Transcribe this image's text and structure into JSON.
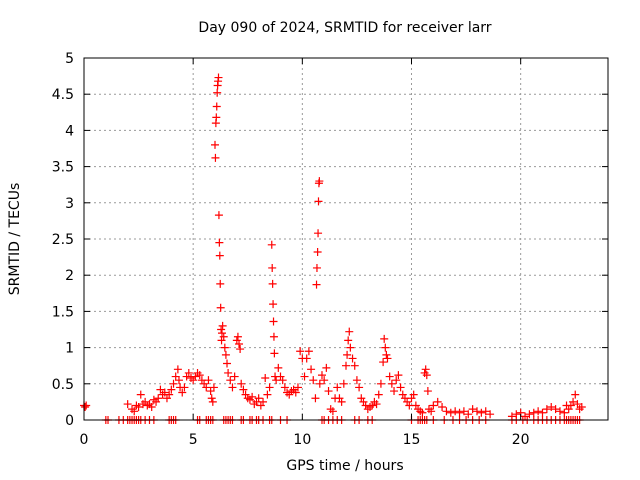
{
  "chart_data": {
    "type": "scatter",
    "title": "Day 090 of 2024, SRMTID for receiver larr",
    "xlabel": "GPS time / hours",
    "ylabel": "SRMTID / TECUs",
    "xlim": [
      0,
      24
    ],
    "ylim": [
      0,
      5
    ],
    "xticks": [
      0,
      5,
      10,
      15,
      20
    ],
    "xtick_labels": [
      "0",
      "5",
      "10",
      "15",
      "20"
    ],
    "yticks": [
      0,
      0.5,
      1,
      1.5,
      2,
      2.5,
      3,
      3.5,
      4,
      4.5,
      5
    ],
    "ytick_labels": [
      "0",
      "0.5",
      "1",
      "1.5",
      "2",
      "2.5",
      "3",
      "3.5",
      "4",
      "4.5",
      "5"
    ],
    "grid": true,
    "marker": "+",
    "color": "#ff0000",
    "series": [
      {
        "points": [
          [
            0.0,
            0.2
          ],
          [
            0.05,
            0.18
          ],
          [
            0.1,
            0.2
          ],
          [
            1.0,
            0.0
          ],
          [
            1.1,
            0.0
          ],
          [
            1.6,
            0.0
          ],
          [
            1.8,
            0.0
          ],
          [
            2.0,
            0.0
          ],
          [
            2.1,
            0.0
          ],
          [
            2.2,
            0.0
          ],
          [
            2.3,
            0.0
          ],
          [
            2.4,
            0.0
          ],
          [
            2.5,
            0.0
          ],
          [
            2.6,
            0.0
          ],
          [
            2.8,
            0.0
          ],
          [
            3.0,
            0.0
          ],
          [
            3.2,
            0.0
          ],
          [
            3.9,
            0.0
          ],
          [
            4.0,
            0.0
          ],
          [
            4.1,
            0.0
          ],
          [
            4.2,
            0.0
          ],
          [
            2.0,
            0.22
          ],
          [
            2.2,
            0.15
          ],
          [
            2.3,
            0.12
          ],
          [
            2.4,
            0.2
          ],
          [
            2.5,
            0.18
          ],
          [
            2.6,
            0.35
          ],
          [
            2.7,
            0.22
          ],
          [
            2.8,
            0.25
          ],
          [
            2.9,
            0.2
          ],
          [
            3.0,
            0.22
          ],
          [
            3.1,
            0.18
          ],
          [
            3.2,
            0.28
          ],
          [
            3.3,
            0.25
          ],
          [
            3.4,
            0.3
          ],
          [
            3.5,
            0.42
          ],
          [
            3.6,
            0.35
          ],
          [
            3.7,
            0.38
          ],
          [
            3.8,
            0.3
          ],
          [
            3.9,
            0.35
          ],
          [
            4.0,
            0.42
          ],
          [
            4.1,
            0.5
          ],
          [
            4.2,
            0.6
          ],
          [
            4.3,
            0.7
          ],
          [
            4.35,
            0.55
          ],
          [
            4.4,
            0.45
          ],
          [
            4.5,
            0.38
          ],
          [
            4.6,
            0.45
          ],
          [
            4.7,
            0.6
          ],
          [
            4.8,
            0.65
          ],
          [
            4.9,
            0.58
          ],
          [
            5.0,
            0.55
          ],
          [
            5.1,
            0.6
          ],
          [
            5.2,
            0.65
          ],
          [
            5.3,
            0.62
          ],
          [
            5.4,
            0.55
          ],
          [
            5.5,
            0.5
          ],
          [
            5.6,
            0.45
          ],
          [
            5.7,
            0.55
          ],
          [
            5.8,
            0.4
          ],
          [
            5.85,
            0.3
          ],
          [
            5.9,
            0.25
          ],
          [
            5.95,
            0.45
          ],
          [
            6.0,
            3.8
          ],
          [
            6.02,
            3.62
          ],
          [
            6.04,
            4.1
          ],
          [
            6.06,
            4.18
          ],
          [
            6.08,
            4.33
          ],
          [
            6.1,
            4.52
          ],
          [
            6.12,
            4.62
          ],
          [
            6.14,
            4.68
          ],
          [
            6.16,
            4.73
          ],
          [
            6.18,
            2.83
          ],
          [
            6.2,
            2.45
          ],
          [
            6.22,
            2.27
          ],
          [
            6.24,
            1.88
          ],
          [
            6.26,
            1.55
          ],
          [
            6.28,
            1.25
          ],
          [
            6.3,
            1.1
          ],
          [
            6.32,
            1.2
          ],
          [
            6.35,
            1.3
          ],
          [
            6.4,
            1.15
          ],
          [
            6.45,
            1.0
          ],
          [
            6.5,
            0.9
          ],
          [
            6.55,
            0.78
          ],
          [
            6.6,
            0.65
          ],
          [
            6.7,
            0.55
          ],
          [
            6.8,
            0.45
          ],
          [
            6.9,
            0.6
          ],
          [
            7.0,
            1.1
          ],
          [
            7.05,
            1.15
          ],
          [
            7.1,
            1.05
          ],
          [
            7.15,
            0.98
          ],
          [
            7.2,
            0.5
          ],
          [
            7.3,
            0.42
          ],
          [
            7.4,
            0.35
          ],
          [
            7.5,
            0.3
          ],
          [
            7.6,
            0.28
          ],
          [
            7.7,
            0.32
          ],
          [
            7.8,
            0.22
          ],
          [
            7.9,
            0.25
          ],
          [
            8.0,
            0.3
          ],
          [
            8.1,
            0.2
          ],
          [
            8.2,
            0.25
          ],
          [
            8.3,
            0.58
          ],
          [
            8.4,
            0.35
          ],
          [
            8.5,
            0.45
          ],
          [
            8.6,
            2.42
          ],
          [
            8.62,
            2.1
          ],
          [
            8.64,
            1.88
          ],
          [
            8.66,
            1.6
          ],
          [
            8.68,
            1.36
          ],
          [
            8.7,
            1.15
          ],
          [
            8.72,
            0.92
          ],
          [
            8.75,
            0.6
          ],
          [
            8.8,
            0.55
          ],
          [
            8.9,
            0.72
          ],
          [
            9.0,
            0.6
          ],
          [
            9.1,
            0.55
          ],
          [
            9.2,
            0.45
          ],
          [
            9.3,
            0.38
          ],
          [
            9.4,
            0.35
          ],
          [
            9.5,
            0.4
          ],
          [
            9.6,
            0.42
          ],
          [
            9.7,
            0.38
          ],
          [
            9.8,
            0.45
          ],
          [
            9.9,
            0.95
          ],
          [
            10.0,
            0.85
          ],
          [
            10.1,
            0.6
          ],
          [
            10.2,
            0.85
          ],
          [
            10.3,
            0.95
          ],
          [
            10.4,
            0.7
          ],
          [
            10.5,
            0.55
          ],
          [
            10.6,
            0.3
          ],
          [
            10.65,
            1.87
          ],
          [
            10.67,
            2.1
          ],
          [
            10.7,
            2.32
          ],
          [
            10.72,
            2.58
          ],
          [
            10.74,
            3.02
          ],
          [
            10.76,
            3.27
          ],
          [
            10.78,
            3.3
          ],
          [
            10.8,
            0.5
          ],
          [
            10.9,
            0.62
          ],
          [
            11.0,
            0.55
          ],
          [
            11.1,
            0.72
          ],
          [
            11.2,
            0.4
          ],
          [
            11.3,
            0.15
          ],
          [
            11.4,
            0.12
          ],
          [
            11.5,
            0.3
          ],
          [
            11.6,
            0.45
          ],
          [
            11.7,
            0.3
          ],
          [
            11.8,
            0.25
          ],
          [
            11.9,
            0.5
          ],
          [
            12.0,
            0.75
          ],
          [
            12.05,
            0.9
          ],
          [
            12.1,
            1.1
          ],
          [
            12.15,
            1.22
          ],
          [
            12.2,
            1.0
          ],
          [
            12.3,
            0.85
          ],
          [
            12.4,
            0.75
          ],
          [
            12.5,
            0.55
          ],
          [
            12.6,
            0.45
          ],
          [
            12.7,
            0.3
          ],
          [
            12.8,
            0.25
          ],
          [
            12.9,
            0.2
          ],
          [
            13.0,
            0.15
          ],
          [
            13.1,
            0.18
          ],
          [
            13.2,
            0.2
          ],
          [
            13.3,
            0.25
          ],
          [
            13.4,
            0.22
          ],
          [
            13.5,
            0.35
          ],
          [
            13.6,
            0.5
          ],
          [
            13.7,
            0.8
          ],
          [
            13.75,
            1.12
          ],
          [
            13.8,
            1.0
          ],
          [
            13.85,
            0.9
          ],
          [
            13.9,
            0.85
          ],
          [
            14.0,
            0.6
          ],
          [
            14.1,
            0.5
          ],
          [
            14.2,
            0.4
          ],
          [
            14.3,
            0.55
          ],
          [
            14.4,
            0.62
          ],
          [
            14.5,
            0.45
          ],
          [
            14.6,
            0.35
          ],
          [
            14.7,
            0.3
          ],
          [
            14.8,
            0.25
          ],
          [
            14.9,
            0.2
          ],
          [
            15.0,
            0.3
          ],
          [
            15.1,
            0.35
          ],
          [
            15.2,
            0.2
          ],
          [
            15.3,
            0.15
          ],
          [
            15.4,
            0.12
          ],
          [
            15.5,
            0.1
          ],
          [
            15.6,
            0.65
          ],
          [
            15.65,
            0.7
          ],
          [
            15.7,
            0.62
          ],
          [
            15.75,
            0.4
          ],
          [
            15.8,
            0.15
          ],
          [
            15.9,
            0.12
          ],
          [
            16.0,
            0.2
          ],
          [
            16.2,
            0.25
          ],
          [
            16.4,
            0.18
          ],
          [
            16.6,
            0.12
          ],
          [
            16.8,
            0.1
          ],
          [
            17.0,
            0.12
          ],
          [
            17.2,
            0.1
          ],
          [
            17.4,
            0.12
          ],
          [
            17.6,
            0.08
          ],
          [
            17.8,
            0.15
          ],
          [
            18.0,
            0.12
          ],
          [
            18.2,
            0.1
          ],
          [
            18.4,
            0.12
          ],
          [
            18.6,
            0.08
          ],
          [
            19.6,
            0.05
          ],
          [
            19.8,
            0.08
          ],
          [
            20.0,
            0.1
          ],
          [
            20.2,
            0.05
          ],
          [
            20.4,
            0.08
          ],
          [
            20.6,
            0.1
          ],
          [
            20.8,
            0.12
          ],
          [
            21.0,
            0.1
          ],
          [
            21.2,
            0.15
          ],
          [
            21.4,
            0.18
          ],
          [
            21.6,
            0.15
          ],
          [
            21.8,
            0.12
          ],
          [
            22.0,
            0.1
          ],
          [
            22.1,
            0.2
          ],
          [
            22.2,
            0.15
          ],
          [
            22.3,
            0.2
          ],
          [
            22.4,
            0.25
          ],
          [
            22.5,
            0.35
          ],
          [
            22.6,
            0.22
          ],
          [
            22.7,
            0.15
          ],
          [
            22.8,
            0.18
          ],
          [
            5.2,
            0.0
          ],
          [
            5.3,
            0.0
          ],
          [
            5.6,
            0.0
          ],
          [
            5.7,
            0.0
          ],
          [
            5.8,
            0.0
          ],
          [
            5.9,
            0.0
          ],
          [
            6.4,
            0.0
          ],
          [
            6.5,
            0.0
          ],
          [
            6.6,
            0.0
          ],
          [
            6.7,
            0.0
          ],
          [
            6.8,
            0.0
          ],
          [
            7.2,
            0.0
          ],
          [
            7.3,
            0.0
          ],
          [
            7.6,
            0.0
          ],
          [
            7.7,
            0.0
          ],
          [
            7.9,
            0.0
          ],
          [
            8.0,
            0.0
          ],
          [
            8.2,
            0.0
          ],
          [
            8.5,
            0.0
          ],
          [
            8.6,
            0.0
          ],
          [
            9.0,
            0.0
          ],
          [
            9.3,
            0.0
          ],
          [
            10.9,
            0.0
          ],
          [
            11.0,
            0.0
          ],
          [
            11.2,
            0.0
          ],
          [
            11.4,
            0.0
          ],
          [
            11.6,
            0.0
          ],
          [
            11.8,
            0.0
          ],
          [
            12.4,
            0.0
          ],
          [
            12.6,
            0.0
          ],
          [
            13.0,
            0.0
          ],
          [
            13.2,
            0.0
          ],
          [
            15.0,
            0.0
          ],
          [
            15.3,
            0.0
          ],
          [
            15.4,
            0.0
          ],
          [
            15.5,
            0.0
          ],
          [
            15.6,
            0.0
          ],
          [
            15.7,
            0.0
          ],
          [
            16.0,
            0.0
          ],
          [
            16.5,
            0.0
          ],
          [
            16.9,
            0.0
          ],
          [
            17.2,
            0.0
          ],
          [
            17.5,
            0.0
          ],
          [
            17.8,
            0.0
          ],
          [
            18.1,
            0.0
          ],
          [
            18.4,
            0.0
          ],
          [
            19.6,
            0.0
          ],
          [
            19.8,
            0.0
          ],
          [
            20.1,
            0.0
          ],
          [
            20.3,
            0.0
          ],
          [
            20.6,
            0.0
          ],
          [
            20.8,
            0.0
          ],
          [
            21.0,
            0.0
          ],
          [
            21.2,
            0.0
          ],
          [
            21.4,
            0.0
          ],
          [
            21.6,
            0.0
          ],
          [
            21.8,
            0.0
          ],
          [
            22.0,
            0.0
          ],
          [
            22.1,
            0.0
          ],
          [
            22.2,
            0.0
          ],
          [
            22.3,
            0.0
          ],
          [
            22.4,
            0.0
          ],
          [
            22.5,
            0.0
          ],
          [
            22.6,
            0.0
          ],
          [
            22.7,
            0.0
          ]
        ]
      }
    ]
  }
}
